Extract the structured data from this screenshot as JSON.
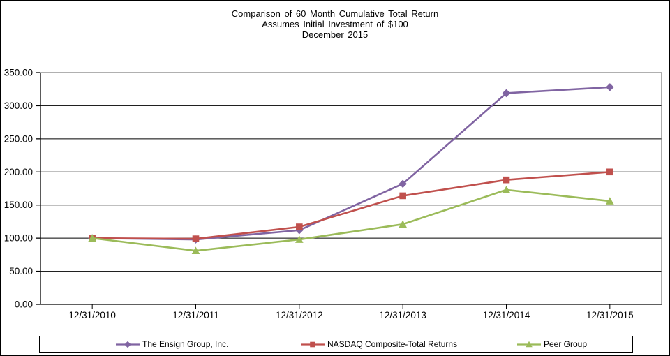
{
  "page": {
    "background": "#ffffff",
    "border_color": "#000000",
    "gridline_color": "#000000",
    "plot_border_color": "#808080"
  },
  "chart_data": {
    "type": "line",
    "title": "Comparison of 60 Month Cumulative Total Return",
    "subtitle": "Assumes Initial Investment of $100",
    "date_label": "December 2015",
    "categories": [
      "12/31/2010",
      "12/31/2011",
      "12/31/2012",
      "12/31/2013",
      "12/31/2014",
      "12/31/2015"
    ],
    "series": [
      {
        "name": "The Ensign Group, Inc.",
        "color": "#8064A2",
        "marker": "diamond",
        "values": [
          100.0,
          98.0,
          112.0,
          182.0,
          319.0,
          328.0
        ]
      },
      {
        "name": "NASDAQ Composite-Total Returns",
        "color": "#C0504D",
        "marker": "square",
        "values": [
          100.0,
          99.0,
          117.0,
          164.0,
          188.0,
          200.0
        ]
      },
      {
        "name": "Peer Group",
        "color": "#9BBB59",
        "marker": "triangle",
        "values": [
          100.0,
          81.0,
          98.0,
          121.0,
          173.0,
          156.0
        ]
      }
    ],
    "xlabel": "",
    "ylabel": "",
    "ylim": [
      0,
      350
    ],
    "ytick_step": 50,
    "ytick_labels": [
      "0.00",
      "50.00",
      "100.00",
      "150.00",
      "200.00",
      "250.00",
      "300.00",
      "350.00"
    ],
    "grid": true,
    "legend_position": "bottom"
  }
}
